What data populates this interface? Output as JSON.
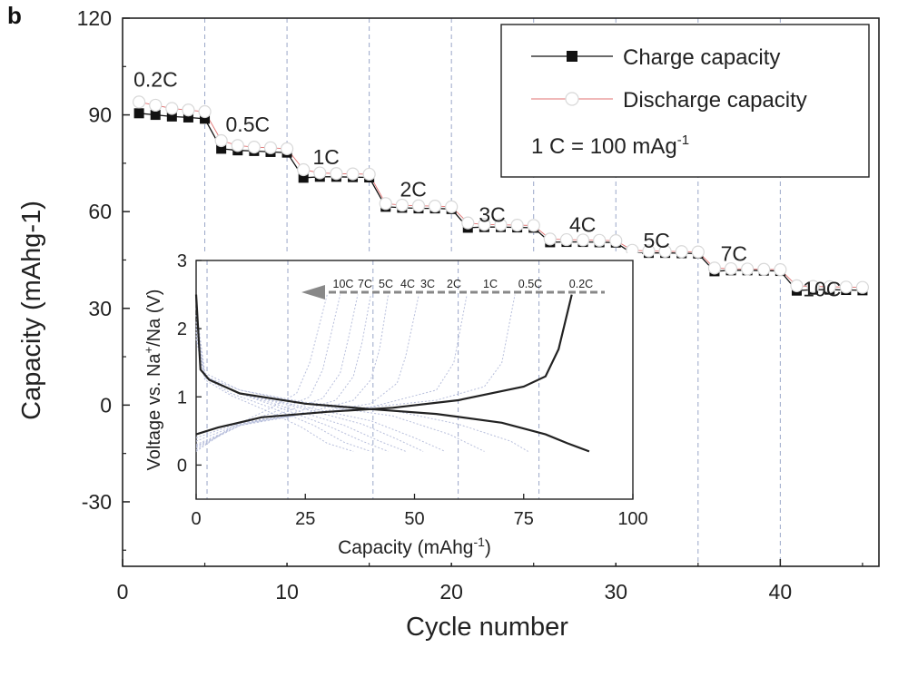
{
  "panel_label": "b",
  "chart_data": [
    {
      "type": "scatter",
      "xlabel": "Cycle number",
      "ylabel": "Capacity (mAhg-1)",
      "xlim": [
        0,
        46
      ],
      "ylim": [
        -50,
        120
      ],
      "xticks": [
        0,
        10,
        20,
        30,
        40
      ],
      "yticks": [
        -30,
        0,
        30,
        60,
        90,
        120
      ],
      "grid": "vertical dashed lines at x = 5, 10, 15, 20, 25, 30, 35, 40",
      "legend_position": "top-right",
      "legend_note": "1 C = 100 mAg",
      "legend_note_sup": "-1",
      "rate_labels": [
        {
          "text": "0.2C",
          "cycle": 1,
          "capacity": 101
        },
        {
          "text": "0.5C",
          "cycle": 6.6,
          "capacity": 87
        },
        {
          "text": "1C",
          "cycle": 11.9,
          "capacity": 77
        },
        {
          "text": "2C",
          "cycle": 17.2,
          "capacity": 67
        },
        {
          "text": "3C",
          "cycle": 22,
          "capacity": 59
        },
        {
          "text": "4C",
          "cycle": 27.5,
          "capacity": 56
        },
        {
          "text": "5C",
          "cycle": 32,
          "capacity": 51
        },
        {
          "text": "7C",
          "cycle": 36.7,
          "capacity": 47
        },
        {
          "text": "10C",
          "cycle": 41.7,
          "capacity": 36
        }
      ],
      "x": [
        1,
        2,
        3,
        4,
        5,
        6,
        7,
        8,
        9,
        10,
        11,
        12,
        13,
        14,
        15,
        16,
        17,
        18,
        19,
        20,
        21,
        22,
        23,
        24,
        25,
        26,
        27,
        28,
        29,
        30,
        31,
        32,
        33,
        34,
        35,
        36,
        37,
        38,
        39,
        40,
        41,
        42,
        43,
        44,
        45
      ],
      "series": [
        {
          "name": "Charge capacity",
          "color": "#111111",
          "marker": "filled-square",
          "values": [
            90.5,
            90,
            89.5,
            89.2,
            88.8,
            79.5,
            79,
            78.8,
            78.5,
            78.3,
            70.5,
            70.8,
            70.8,
            70.7,
            70.6,
            61.5,
            61.2,
            61,
            61,
            60.8,
            55,
            55.2,
            55.2,
            55.1,
            55,
            50.5,
            50.6,
            50.6,
            50.5,
            50.4,
            47,
            47.2,
            47.2,
            47.1,
            47,
            41.5,
            41.8,
            41.8,
            41.7,
            41.6,
            35.5,
            35.8,
            35.8,
            35.7,
            35.6
          ]
        },
        {
          "name": "Discharge capacity",
          "color": "#e07070",
          "marker": "open-circle",
          "values": [
            94,
            93,
            92,
            91.5,
            91,
            82,
            80.5,
            80,
            79.8,
            79.5,
            73,
            72,
            71.8,
            71.7,
            71.6,
            62.5,
            62,
            61.8,
            61.7,
            61.5,
            56.5,
            56,
            55.9,
            55.8,
            55.7,
            51.5,
            51.3,
            51.2,
            51.1,
            51,
            48,
            47.8,
            47.7,
            47.6,
            47.5,
            42.5,
            42.3,
            42.2,
            42.1,
            42,
            37,
            36.8,
            36.7,
            36.6,
            36.5
          ]
        }
      ]
    },
    {
      "type": "line",
      "inset": true,
      "xlabel": "Capacity",
      "xlabel_unit": "(mAhg",
      "xlabel_unit_sup": "-1",
      "xlabel_unit_close": ")",
      "ylabel_parts": [
        "Voltage vs. Na",
        "+",
        "/Na (V)"
      ],
      "xlim": [
        0,
        100
      ],
      "ylim": [
        -0.5,
        3
      ],
      "xticks": [
        0,
        25,
        50,
        75,
        100
      ],
      "yticks": [
        0,
        1,
        2,
        3
      ],
      "grid": "vertical dashed lines at x = 2.5, 21, 40.5, 60, 78.5",
      "rate_arrow_labels": [
        "10C",
        "7C",
        "5C",
        "4C",
        "3C",
        "2C",
        "1C",
        "0.5C",
        "0.2C"
      ],
      "series": [
        {
          "name": "0.2C",
          "emphasis": true,
          "charge": [
            [
              0,
              0.45
            ],
            [
              5,
              0.55
            ],
            [
              15,
              0.7
            ],
            [
              30,
              0.78
            ],
            [
              45,
              0.84
            ],
            [
              60,
              0.95
            ],
            [
              75,
              1.15
            ],
            [
              80,
              1.3
            ],
            [
              83,
              1.7
            ],
            [
              86,
              2.5
            ]
          ],
          "discharge": [
            [
              0,
              2.5
            ],
            [
              1,
              1.4
            ],
            [
              3,
              1.25
            ],
            [
              10,
              1.05
            ],
            [
              25,
              0.9
            ],
            [
              40,
              0.82
            ],
            [
              55,
              0.75
            ],
            [
              70,
              0.62
            ],
            [
              80,
              0.45
            ],
            [
              85,
              0.32
            ],
            [
              90,
              0.2
            ]
          ]
        },
        {
          "name": "0.5C",
          "charge": [
            [
              0,
              0.4
            ],
            [
              10,
              0.62
            ],
            [
              25,
              0.75
            ],
            [
              40,
              0.85
            ],
            [
              55,
              0.95
            ],
            [
              66,
              1.15
            ],
            [
              70,
              1.5
            ],
            [
              73,
              2.5
            ]
          ],
          "discharge": [
            [
              0,
              2.3
            ],
            [
              2,
              1.35
            ],
            [
              10,
              1.1
            ],
            [
              25,
              0.92
            ],
            [
              45,
              0.8
            ],
            [
              60,
              0.6
            ],
            [
              72,
              0.35
            ],
            [
              76,
              0.2
            ]
          ]
        },
        {
          "name": "1C",
          "charge": [
            [
              0,
              0.35
            ],
            [
              10,
              0.6
            ],
            [
              25,
              0.75
            ],
            [
              40,
              0.85
            ],
            [
              55,
              1.1
            ],
            [
              59,
              1.5
            ],
            [
              62,
              2.5
            ]
          ],
          "discharge": [
            [
              0,
              2.2
            ],
            [
              2,
              1.3
            ],
            [
              10,
              1.1
            ],
            [
              25,
              0.9
            ],
            [
              45,
              0.72
            ],
            [
              58,
              0.45
            ],
            [
              66,
              0.2
            ]
          ]
        },
        {
          "name": "2C",
          "charge": [
            [
              0,
              0.3
            ],
            [
              10,
              0.58
            ],
            [
              25,
              0.75
            ],
            [
              40,
              0.9
            ],
            [
              46,
              1.2
            ],
            [
              48,
              1.6
            ],
            [
              51,
              2.5
            ]
          ],
          "discharge": [
            [
              0,
              2.1
            ],
            [
              2,
              1.3
            ],
            [
              10,
              1.05
            ],
            [
              25,
              0.85
            ],
            [
              40,
              0.65
            ],
            [
              50,
              0.4
            ],
            [
              57,
              0.2
            ]
          ]
        },
        {
          "name": "3C",
          "charge": [
            [
              0,
              0.28
            ],
            [
              10,
              0.58
            ],
            [
              25,
              0.76
            ],
            [
              36,
              0.95
            ],
            [
              40,
              1.25
            ],
            [
              42,
              1.7
            ],
            [
              44,
              2.5
            ]
          ],
          "discharge": [
            [
              0,
              2.05
            ],
            [
              2,
              1.3
            ],
            [
              10,
              1.05
            ],
            [
              25,
              0.82
            ],
            [
              38,
              0.6
            ],
            [
              46,
              0.38
            ],
            [
              52,
              0.2
            ]
          ]
        },
        {
          "name": "4C",
          "charge": [
            [
              0,
              0.27
            ],
            [
              10,
              0.58
            ],
            [
              22,
              0.76
            ],
            [
              32,
              0.95
            ],
            [
              36,
              1.3
            ],
            [
              38,
              1.8
            ],
            [
              40,
              2.5
            ]
          ],
          "discharge": [
            [
              0,
              2.0
            ],
            [
              2,
              1.3
            ],
            [
              10,
              1.05
            ],
            [
              22,
              0.82
            ],
            [
              34,
              0.58
            ],
            [
              42,
              0.35
            ],
            [
              48,
              0.2
            ]
          ]
        },
        {
          "name": "5C",
          "charge": [
            [
              0,
              0.25
            ],
            [
              10,
              0.58
            ],
            [
              20,
              0.77
            ],
            [
              29,
              0.98
            ],
            [
              33,
              1.35
            ],
            [
              35,
              1.9
            ],
            [
              37,
              2.5
            ]
          ],
          "discharge": [
            [
              0,
              1.95
            ],
            [
              2,
              1.3
            ],
            [
              10,
              1.05
            ],
            [
              20,
              0.82
            ],
            [
              30,
              0.58
            ],
            [
              38,
              0.35
            ],
            [
              44,
              0.2
            ]
          ]
        },
        {
          "name": "7C",
          "charge": [
            [
              0,
              0.22
            ],
            [
              8,
              0.55
            ],
            [
              18,
              0.78
            ],
            [
              26,
              1.0
            ],
            [
              29,
              1.4
            ],
            [
              31,
              1.95
            ],
            [
              33,
              2.5
            ]
          ],
          "discharge": [
            [
              0,
              1.9
            ],
            [
              2,
              1.28
            ],
            [
              8,
              1.05
            ],
            [
              18,
              0.82
            ],
            [
              27,
              0.58
            ],
            [
              34,
              0.33
            ],
            [
              40,
              0.2
            ]
          ]
        },
        {
          "name": "10C",
          "charge": [
            [
              0,
              0.2
            ],
            [
              8,
              0.55
            ],
            [
              16,
              0.8
            ],
            [
              23,
              1.05
            ],
            [
              26,
              1.5
            ],
            [
              28,
              2.0
            ],
            [
              30,
              2.5
            ]
          ],
          "discharge": [
            [
              0,
              1.85
            ],
            [
              2,
              1.25
            ],
            [
              8,
              1.02
            ],
            [
              16,
              0.8
            ],
            [
              24,
              0.56
            ],
            [
              30,
              0.32
            ],
            [
              36,
              0.2
            ]
          ]
        }
      ]
    }
  ]
}
